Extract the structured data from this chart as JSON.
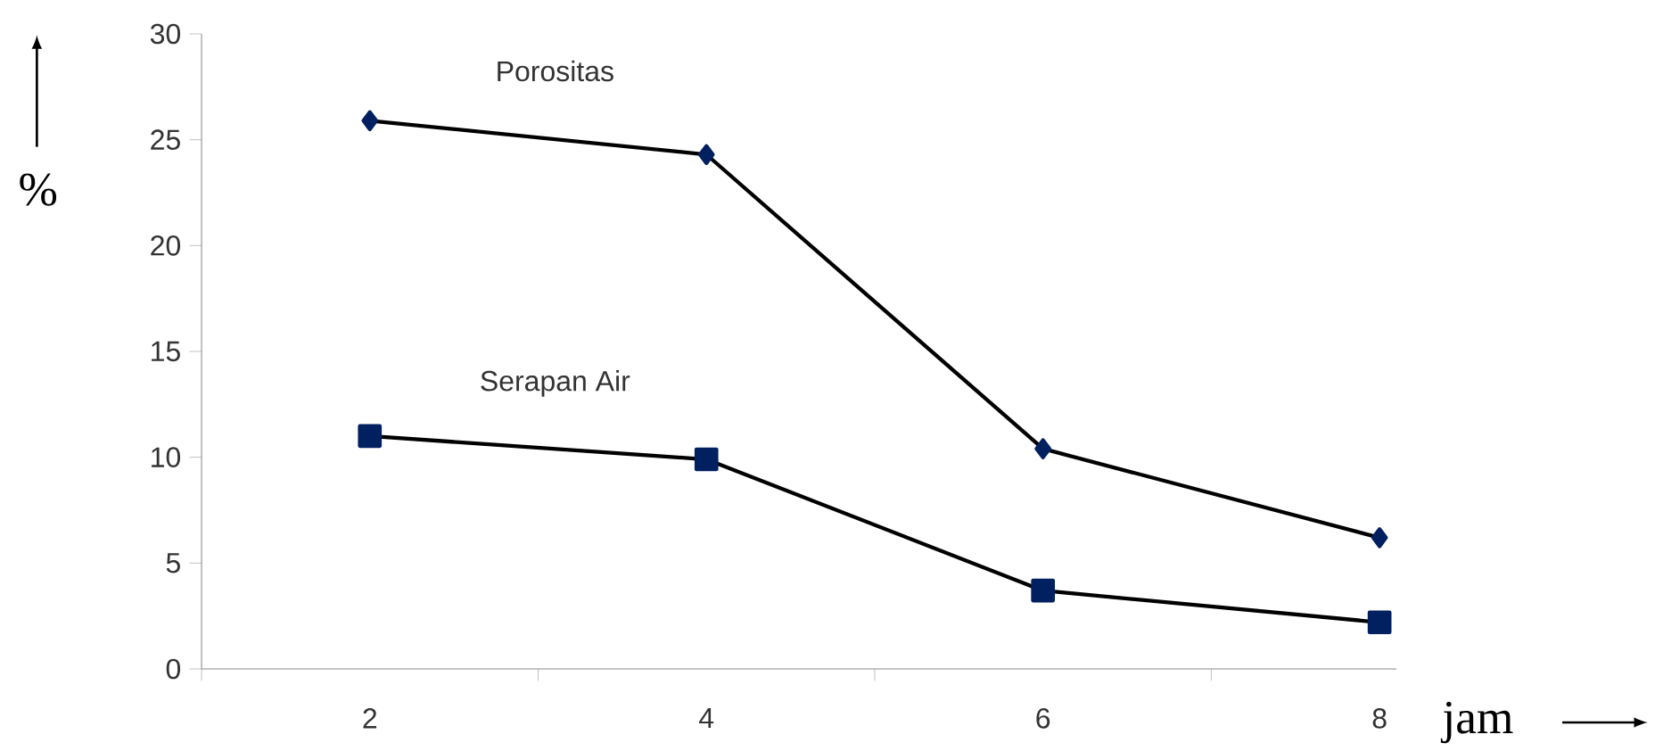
{
  "chart_data": {
    "type": "line",
    "xlabel": "jam",
    "ylabel": "%",
    "categories": [
      "2",
      "4",
      "6",
      "8"
    ],
    "series": [
      {
        "name": "Porositas",
        "color": "#002060",
        "marker": "diamond",
        "values": [
          25.9,
          24.3,
          10.4,
          6.2
        ]
      },
      {
        "name": "Serapan Air",
        "color": "#002060",
        "marker": "square",
        "values": [
          11.0,
          9.9,
          3.7,
          2.2
        ]
      }
    ],
    "ylim": [
      0,
      30
    ],
    "yticks": [
      0,
      5,
      10,
      15,
      20,
      25,
      30
    ],
    "grid": false,
    "legend": false,
    "line_style": "solid"
  }
}
